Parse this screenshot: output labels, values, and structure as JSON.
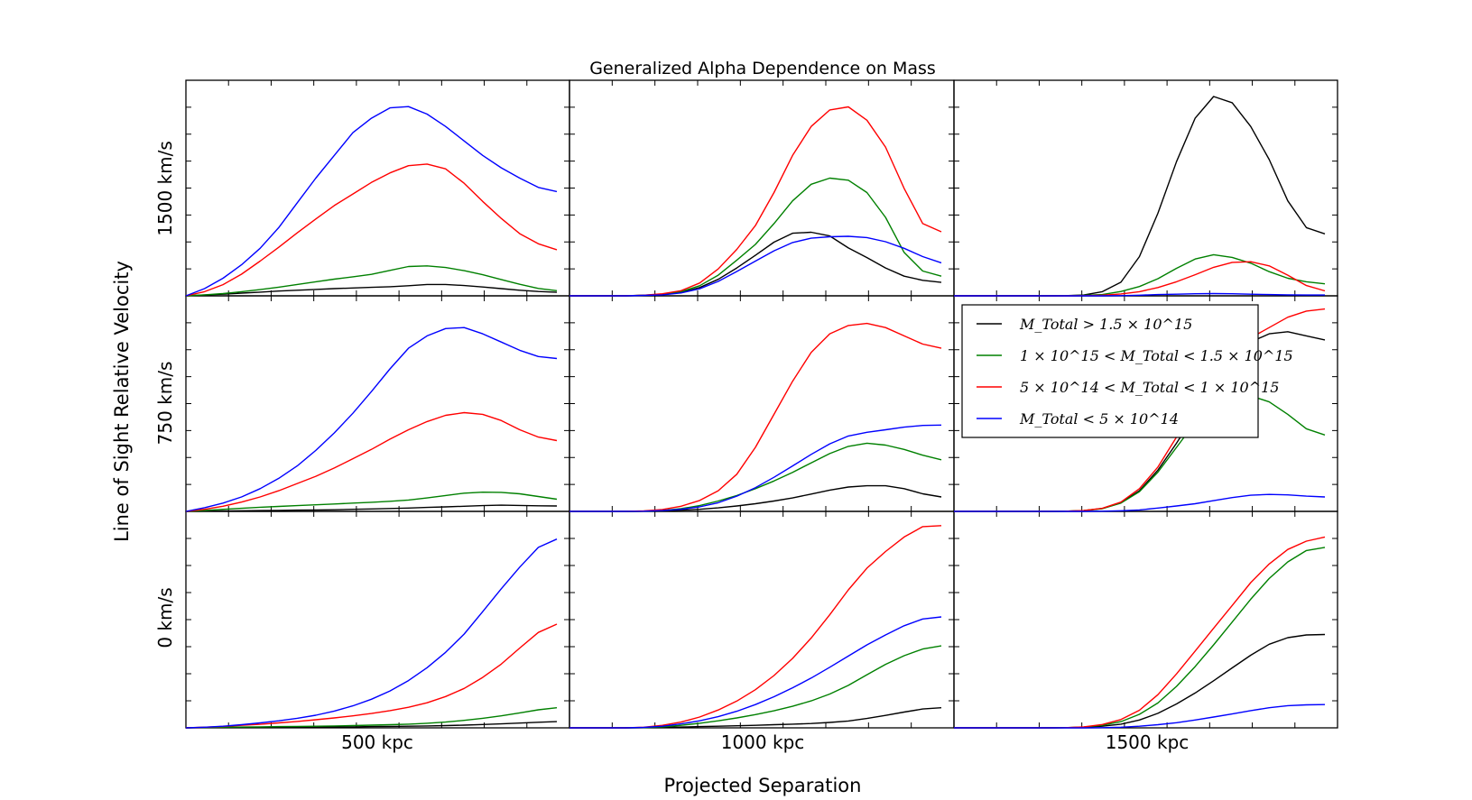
{
  "chart_data": {
    "type": "line",
    "title": "Generalized Alpha Dependence on Mass",
    "xlabel": "Projected Separation",
    "ylabel": "Line of Sight Relative Velocity",
    "column_labels": [
      "500 kpc",
      "1000 kpc",
      "1500 kpc"
    ],
    "row_labels": [
      "1500 km/s",
      "750 km/s",
      "0 km/s"
    ],
    "grid": false,
    "legend_placement": "upper-right of middle-right panel",
    "xlim": [
      0,
      1
    ],
    "ylim": [
      0,
      1
    ],
    "series_meta": [
      {
        "name": "M_Total > 1.5 × 10^15",
        "color": "#000000"
      },
      {
        "name": "1 × 10^15 < M_Total < 1.5 × 10^15",
        "color": "#008000"
      },
      {
        "name": "5 × 10^14 < M_Total < 1 × 10^15",
        "color": "#ff0000"
      },
      {
        "name": "M_Total < 5 × 10^14",
        "color": "#0000ff"
      }
    ],
    "x": [
      0,
      0.05,
      0.1,
      0.15,
      0.2,
      0.25,
      0.3,
      0.35,
      0.4,
      0.45,
      0.5,
      0.55,
      0.6,
      0.65,
      0.7,
      0.75,
      0.8,
      0.85,
      0.9,
      0.95,
      1.0
    ],
    "panels": [
      {
        "row": 0,
        "col": 0,
        "series": [
          [
            0,
            0.004,
            0.008,
            0.013,
            0.018,
            0.023,
            0.027,
            0.031,
            0.035,
            0.038,
            0.041,
            0.044,
            0.049,
            0.055,
            0.055,
            0.05,
            0.043,
            0.035,
            0.027,
            0.021,
            0.017
          ],
          [
            0,
            0.005,
            0.011,
            0.02,
            0.03,
            0.042,
            0.055,
            0.068,
            0.081,
            0.092,
            0.104,
            0.123,
            0.142,
            0.145,
            0.137,
            0.122,
            0.102,
            0.079,
            0.056,
            0.036,
            0.025
          ],
          [
            0,
            0.02,
            0.054,
            0.105,
            0.168,
            0.235,
            0.305,
            0.372,
            0.437,
            0.493,
            0.549,
            0.595,
            0.63,
            0.638,
            0.615,
            0.545,
            0.457,
            0.375,
            0.301,
            0.252,
            0.223
          ],
          [
            0,
            0.035,
            0.085,
            0.15,
            0.23,
            0.33,
            0.45,
            0.57,
            0.68,
            0.79,
            0.86,
            0.91,
            0.916,
            0.88,
            0.82,
            0.75,
            0.68,
            0.62,
            0.57,
            0.525,
            0.505
          ]
        ]
      },
      {
        "row": 0,
        "col": 1,
        "series": [
          [
            0,
            0,
            0,
            0,
            0.002,
            0.006,
            0.016,
            0.04,
            0.08,
            0.135,
            0.196,
            0.26,
            0.303,
            0.308,
            0.29,
            0.232,
            0.185,
            0.135,
            0.095,
            0.075,
            0.065
          ],
          [
            0,
            0,
            0,
            0,
            0.003,
            0.008,
            0.02,
            0.049,
            0.1,
            0.173,
            0.249,
            0.35,
            0.46,
            0.54,
            0.57,
            0.56,
            0.5,
            0.38,
            0.21,
            0.12,
            0.095
          ],
          [
            0,
            0,
            0,
            0,
            0.003,
            0.01,
            0.025,
            0.062,
            0.13,
            0.225,
            0.34,
            0.5,
            0.68,
            0.82,
            0.9,
            0.915,
            0.85,
            0.72,
            0.52,
            0.35,
            0.31
          ],
          [
            0,
            0,
            0,
            0,
            0.002,
            0.005,
            0.014,
            0.034,
            0.07,
            0.118,
            0.168,
            0.218,
            0.258,
            0.279,
            0.286,
            0.288,
            0.282,
            0.262,
            0.23,
            0.19,
            0.16
          ]
        ]
      },
      {
        "row": 0,
        "col": 2,
        "series": [
          [
            0,
            0,
            0,
            0,
            0,
            0,
            0.001,
            0.004,
            0.02,
            0.066,
            0.19,
            0.4,
            0.65,
            0.86,
            0.965,
            0.935,
            0.82,
            0.66,
            0.46,
            0.33,
            0.3
          ],
          [
            0,
            0,
            0,
            0,
            0,
            0,
            0.001,
            0.002,
            0.006,
            0.021,
            0.045,
            0.083,
            0.133,
            0.178,
            0.199,
            0.186,
            0.158,
            0.117,
            0.085,
            0.068,
            0.058
          ],
          [
            0,
            0,
            0,
            0,
            0,
            0,
            0,
            0.001,
            0.003,
            0.009,
            0.02,
            0.04,
            0.068,
            0.102,
            0.138,
            0.162,
            0.165,
            0.145,
            0.1,
            0.05,
            0.024
          ],
          [
            0,
            0,
            0,
            0,
            0,
            0,
            0,
            0,
            0,
            0.001,
            0.003,
            0.006,
            0.008,
            0.01,
            0.011,
            0.01,
            0.008,
            0.006,
            0.005,
            0.004,
            0.004
          ]
        ]
      },
      {
        "row": 1,
        "col": 0,
        "series": [
          [
            0,
            0.001,
            0.002,
            0.003,
            0.004,
            0.005,
            0.006,
            0.007,
            0.008,
            0.01,
            0.012,
            0.014,
            0.016,
            0.019,
            0.022,
            0.025,
            0.028,
            0.03,
            0.029,
            0.027,
            0.026
          ],
          [
            0,
            0.005,
            0.01,
            0.015,
            0.02,
            0.024,
            0.028,
            0.032,
            0.036,
            0.04,
            0.044,
            0.049,
            0.055,
            0.065,
            0.077,
            0.088,
            0.093,
            0.092,
            0.085,
            0.072,
            0.059
          ],
          [
            0,
            0.01,
            0.025,
            0.045,
            0.07,
            0.1,
            0.135,
            0.17,
            0.21,
            0.255,
            0.3,
            0.35,
            0.395,
            0.435,
            0.465,
            0.478,
            0.47,
            0.44,
            0.395,
            0.36,
            0.343
          ],
          [
            0,
            0.018,
            0.04,
            0.07,
            0.11,
            0.16,
            0.22,
            0.295,
            0.38,
            0.475,
            0.58,
            0.69,
            0.79,
            0.85,
            0.885,
            0.89,
            0.86,
            0.82,
            0.78,
            0.75,
            0.74
          ]
        ]
      },
      {
        "row": 1,
        "col": 1,
        "series": [
          [
            0,
            0,
            0,
            0,
            0.001,
            0.003,
            0.006,
            0.01,
            0.017,
            0.026,
            0.037,
            0.05,
            0.065,
            0.084,
            0.103,
            0.118,
            0.124,
            0.124,
            0.11,
            0.085,
            0.07
          ],
          [
            0,
            0,
            0,
            0,
            0.001,
            0.005,
            0.013,
            0.028,
            0.05,
            0.077,
            0.11,
            0.147,
            0.189,
            0.235,
            0.28,
            0.315,
            0.33,
            0.321,
            0.3,
            0.272,
            0.25
          ],
          [
            0,
            0,
            0,
            0,
            0.002,
            0.009,
            0.025,
            0.053,
            0.1,
            0.18,
            0.31,
            0.47,
            0.63,
            0.77,
            0.86,
            0.9,
            0.91,
            0.89,
            0.85,
            0.81,
            0.79
          ],
          [
            0,
            0,
            0,
            0,
            0.001,
            0.004,
            0.01,
            0.022,
            0.042,
            0.074,
            0.115,
            0.165,
            0.22,
            0.276,
            0.327,
            0.365,
            0.383,
            0.395,
            0.408,
            0.416,
            0.418
          ]
        ]
      },
      {
        "row": 1,
        "col": 2,
        "series": [
          [
            0,
            0,
            0,
            0,
            0,
            0,
            0.001,
            0.004,
            0.014,
            0.042,
            0.1,
            0.2,
            0.33,
            0.47,
            0.62,
            0.75,
            0.82,
            0.86,
            0.87,
            0.85,
            0.83
          ],
          [
            0,
            0,
            0,
            0,
            0,
            0,
            0.001,
            0.004,
            0.013,
            0.04,
            0.095,
            0.19,
            0.31,
            0.43,
            0.52,
            0.555,
            0.56,
            0.53,
            0.47,
            0.4,
            0.37
          ],
          [
            0,
            0,
            0,
            0,
            0,
            0,
            0.001,
            0.004,
            0.015,
            0.045,
            0.11,
            0.215,
            0.36,
            0.51,
            0.65,
            0.76,
            0.84,
            0.89,
            0.94,
            0.97,
            0.98
          ],
          [
            0,
            0,
            0,
            0,
            0,
            0,
            0,
            0,
            0.001,
            0.003,
            0.007,
            0.016,
            0.026,
            0.037,
            0.052,
            0.067,
            0.078,
            0.082,
            0.08,
            0.074,
            0.07
          ]
        ]
      },
      {
        "row": 2,
        "col": 0,
        "series": [
          [
            0,
            0.001,
            0.001,
            0.001,
            0.002,
            0.002,
            0.003,
            0.003,
            0.004,
            0.005,
            0.006,
            0.007,
            0.008,
            0.009,
            0.011,
            0.013,
            0.016,
            0.019,
            0.023,
            0.027,
            0.03
          ],
          [
            0,
            0.002,
            0.003,
            0.004,
            0.005,
            0.006,
            0.007,
            0.008,
            0.009,
            0.011,
            0.013,
            0.015,
            0.018,
            0.022,
            0.028,
            0.036,
            0.046,
            0.058,
            0.072,
            0.087,
            0.097
          ],
          [
            0,
            0.003,
            0.007,
            0.012,
            0.017,
            0.024,
            0.031,
            0.039,
            0.048,
            0.058,
            0.069,
            0.083,
            0.099,
            0.121,
            0.151,
            0.19,
            0.243,
            0.307,
            0.385,
            0.46,
            0.5
          ],
          [
            0,
            0.003,
            0.008,
            0.015,
            0.024,
            0.034,
            0.046,
            0.061,
            0.081,
            0.106,
            0.138,
            0.178,
            0.228,
            0.29,
            0.364,
            0.452,
            0.56,
            0.67,
            0.775,
            0.87,
            0.91
          ]
        ]
      },
      {
        "row": 2,
        "col": 1,
        "series": [
          [
            0,
            0,
            0,
            0,
            0.001,
            0.002,
            0.004,
            0.006,
            0.008,
            0.01,
            0.012,
            0.015,
            0.018,
            0.021,
            0.026,
            0.033,
            0.045,
            0.06,
            0.076,
            0.091,
            0.097
          ],
          [
            0,
            0,
            0,
            0,
            0.001,
            0.005,
            0.012,
            0.022,
            0.034,
            0.048,
            0.064,
            0.082,
            0.104,
            0.13,
            0.163,
            0.205,
            0.256,
            0.306,
            0.348,
            0.38,
            0.395
          ],
          [
            0,
            0,
            0,
            0,
            0.003,
            0.012,
            0.028,
            0.052,
            0.086,
            0.129,
            0.184,
            0.252,
            0.335,
            0.433,
            0.545,
            0.665,
            0.77,
            0.85,
            0.92,
            0.97,
            0.975
          ],
          [
            0,
            0,
            0,
            0,
            0.002,
            0.008,
            0.019,
            0.034,
            0.054,
            0.08,
            0.112,
            0.15,
            0.193,
            0.24,
            0.292,
            0.346,
            0.4,
            0.448,
            0.492,
            0.525,
            0.535
          ]
        ]
      },
      {
        "row": 2,
        "col": 2,
        "series": [
          [
            0,
            0,
            0,
            0,
            0,
            0,
            0.001,
            0.003,
            0.008,
            0.018,
            0.038,
            0.07,
            0.115,
            0.168,
            0.227,
            0.289,
            0.35,
            0.403,
            0.435,
            0.448,
            0.45
          ],
          [
            0,
            0,
            0,
            0,
            0,
            0,
            0.001,
            0.004,
            0.012,
            0.03,
            0.065,
            0.12,
            0.2,
            0.295,
            0.4,
            0.51,
            0.62,
            0.72,
            0.8,
            0.855,
            0.87
          ],
          [
            0,
            0,
            0,
            0,
            0,
            0,
            0.001,
            0.005,
            0.016,
            0.04,
            0.085,
            0.16,
            0.26,
            0.37,
            0.48,
            0.59,
            0.7,
            0.79,
            0.86,
            0.9,
            0.92
          ],
          [
            0,
            0,
            0,
            0,
            0,
            0,
            0,
            0,
            0.001,
            0.003,
            0.008,
            0.015,
            0.025,
            0.038,
            0.052,
            0.067,
            0.083,
            0.097,
            0.107,
            0.111,
            0.112
          ]
        ]
      }
    ]
  }
}
